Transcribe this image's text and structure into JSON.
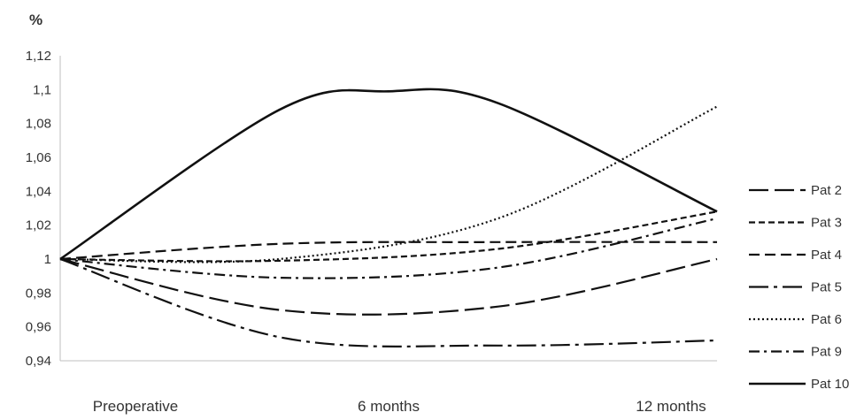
{
  "chart_data": {
    "type": "line",
    "title": "",
    "ylabel": "%",
    "xlabel": "",
    "categories": [
      "Preoperative",
      "6 months",
      "12 months"
    ],
    "ylim": [
      0.94,
      1.12
    ],
    "yticks": [
      "0,94",
      "0,96",
      "0,98",
      "1",
      "1,02",
      "1,04",
      "1,06",
      "1,08",
      "1,1",
      "1,12"
    ],
    "grid": false,
    "legend_position": "right",
    "series": [
      {
        "name": "Pat 2",
        "dash": "long-dash",
        "points": [
          [
            0,
            1.0
          ],
          [
            0.5,
            0.97
          ],
          [
            1.0,
            0.972
          ],
          [
            1.5,
            1.0
          ]
        ]
      },
      {
        "name": "Pat 3",
        "dash": "short-dash",
        "points": [
          [
            0,
            1.0
          ],
          [
            0.5,
            0.999
          ],
          [
            1.0,
            1.006
          ],
          [
            1.5,
            1.028
          ]
        ]
      },
      {
        "name": "Pat 4",
        "dash": "medium-dash",
        "points": [
          [
            0,
            1.0
          ],
          [
            0.5,
            1.009
          ],
          [
            1.0,
            1.01
          ],
          [
            1.5,
            1.01
          ]
        ]
      },
      {
        "name": "Pat 5",
        "dash": "long-dash-dot",
        "points": [
          [
            0,
            1.0
          ],
          [
            0.5,
            0.954
          ],
          [
            1.0,
            0.949
          ],
          [
            1.5,
            0.952
          ]
        ]
      },
      {
        "name": "Pat 6",
        "dash": "dotted",
        "points": [
          [
            0,
            1.0
          ],
          [
            0.5,
            1.0
          ],
          [
            1.0,
            1.024
          ],
          [
            1.5,
            1.09
          ]
        ]
      },
      {
        "name": "Pat 9",
        "dash": "dash-dot",
        "points": [
          [
            0,
            1.0
          ],
          [
            0.5,
            0.989
          ],
          [
            1.0,
            0.995
          ],
          [
            1.5,
            1.024
          ]
        ]
      },
      {
        "name": "Pat 10",
        "dash": "solid",
        "points": [
          [
            0,
            1.0
          ],
          [
            0.5,
            1.088
          ],
          [
            0.75,
            1.099
          ],
          [
            1.0,
            1.092
          ],
          [
            1.5,
            1.028
          ]
        ]
      }
    ]
  }
}
